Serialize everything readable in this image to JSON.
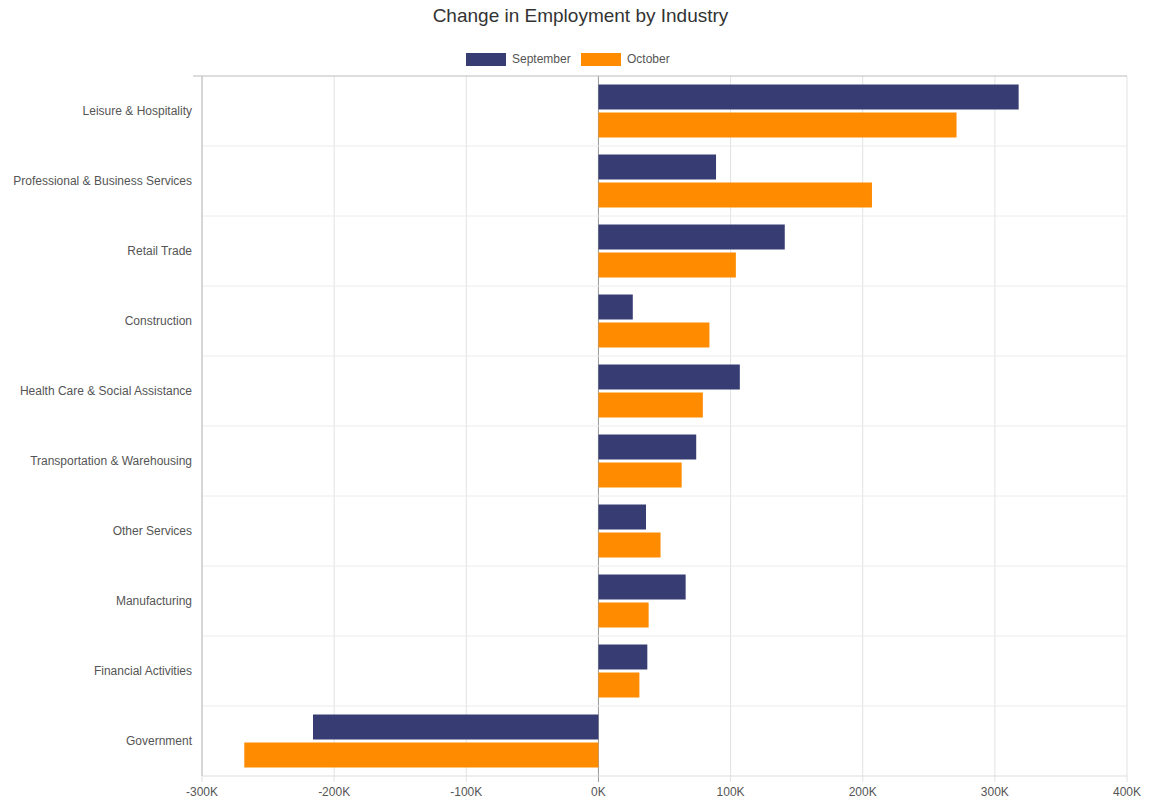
{
  "chart_data": {
    "type": "bar",
    "orientation": "horizontal",
    "title": "Change in Employment by Industry",
    "categories": [
      "Leisure & Hospitality",
      "Professional & Business Services",
      "Retail Trade",
      "Construction",
      "Health Care & Social Assistance",
      "Transportation & Warehousing",
      "Other Services",
      "Manufacturing",
      "Financial Activities",
      "Government"
    ],
    "series": [
      {
        "name": "September",
        "color": "#373d73",
        "values": [
          318000,
          89000,
          141000,
          26000,
          107000,
          74000,
          36000,
          66000,
          37000,
          -216000
        ]
      },
      {
        "name": "October",
        "color": "#ff8c00",
        "values": [
          271000,
          207000,
          104000,
          84000,
          79000,
          63000,
          47000,
          38000,
          31000,
          -268000
        ]
      }
    ],
    "xlim": [
      -300000,
      400000
    ],
    "xticks": [
      {
        "value": -300000,
        "label": "-300K"
      },
      {
        "value": -200000,
        "label": "-200K"
      },
      {
        "value": -100000,
        "label": "-100K"
      },
      {
        "value": 0,
        "label": "0K"
      },
      {
        "value": 100000,
        "label": "100K"
      },
      {
        "value": 200000,
        "label": "200K"
      },
      {
        "value": 300000,
        "label": "300K"
      },
      {
        "value": 400000,
        "label": "400K"
      }
    ],
    "grid": true,
    "legend": "top"
  }
}
